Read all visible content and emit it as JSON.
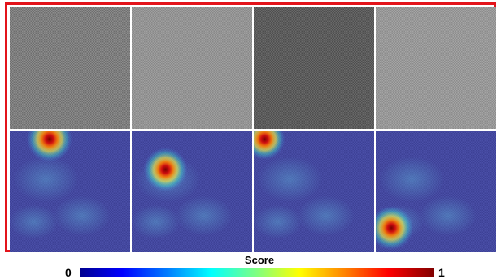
{
  "figure": {
    "rows": [
      {
        "kind": "texture",
        "tiles": [
          {
            "tone": "#8d8d8d",
            "weave": "#6e6e6e"
          },
          {
            "tone": "#a0a0a0",
            "weave": "#888888"
          },
          {
            "tone": "#6a6a6a",
            "weave": "#4e4e4e"
          },
          {
            "tone": "#a5a5a5",
            "weave": "#8c8c8c"
          }
        ]
      },
      {
        "kind": "heatmap",
        "tiles": [
          {
            "hotspot": {
              "x": 0.33,
              "y": 0.07,
              "level": 1.0
            }
          },
          {
            "hotspot": {
              "x": 0.28,
              "y": 0.32,
              "level": 0.95
            }
          },
          {
            "hotspot": {
              "x": 0.09,
              "y": 0.07,
              "level": 0.85
            }
          },
          {
            "hotspot": {
              "x": 0.13,
              "y": 0.8,
              "level": 0.95
            }
          }
        ]
      }
    ],
    "border_color": "#e3141b"
  },
  "colorbar": {
    "title": "Score",
    "min_label": "0",
    "max_label": "1"
  }
}
